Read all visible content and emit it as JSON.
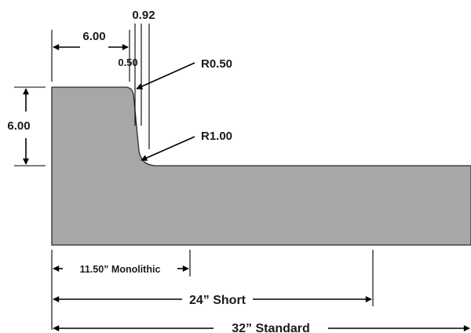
{
  "diagram": {
    "profile": {
      "fill": "#a7a7a7",
      "stroke": "#2b2b2b"
    },
    "labels": {
      "top_width": "6.00",
      "flare_width": "0.92",
      "batter_width": "0.50",
      "top_radius": "R0.50",
      "toe_radius": "R1.00",
      "curb_height": "6.00",
      "monolithic": "11.50” Monolithic",
      "short": "24” Short",
      "standard": "32” Standard"
    }
  }
}
